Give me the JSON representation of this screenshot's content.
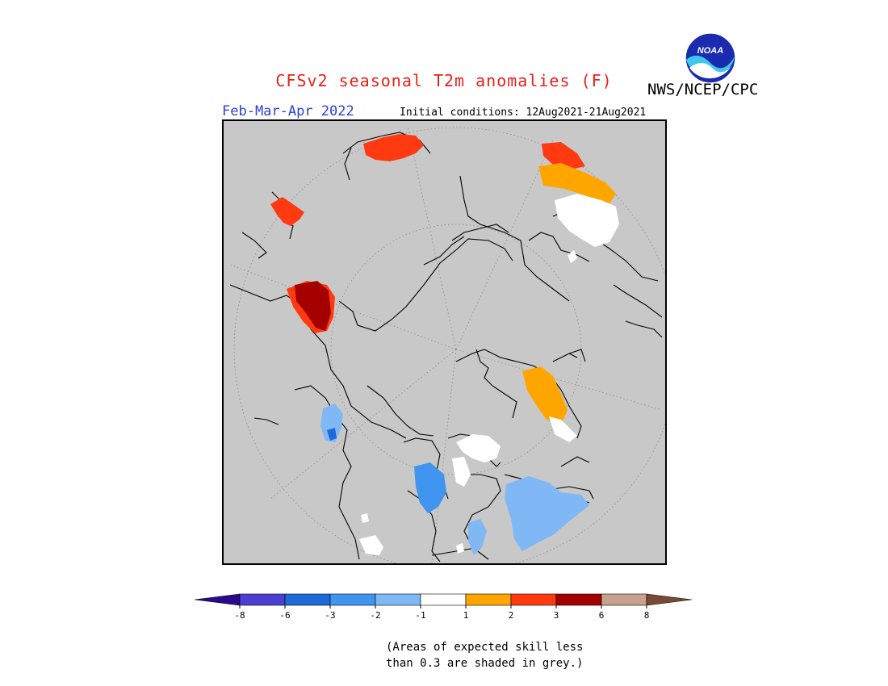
{
  "header": {
    "title": "CFSv2 seasonal T2m anomalies (F)",
    "agency": "NWS/NCEP/CPC",
    "logo_text": "NOAA",
    "season": "Feb-Mar-Apr 2022",
    "initial_conditions": "Initial conditions: 12Aug2021-21Aug2021"
  },
  "colors": {
    "background": "#c8c8c8",
    "land_outline": "#000000",
    "grid": "#808080",
    "title": "#e8201a",
    "season": "#2b3fd8"
  },
  "legend": {
    "ticks": [
      "-8",
      "-6",
      "-3",
      "-2",
      "-1",
      "1",
      "2",
      "3",
      "6",
      "8"
    ],
    "colors": [
      "#2a0a8c",
      "#4a3fd0",
      "#1e6ad8",
      "#3f95f0",
      "#7fb8f5",
      "#ffffff",
      "#ffa500",
      "#ff3a10",
      "#a50000",
      "#c8a090",
      "#7a4a38"
    ]
  },
  "map": {
    "anomaly_patches": [
      {
        "name": "europe-warm-patch",
        "category": "3"
      },
      {
        "name": "scandinavia-warm-patch",
        "category": "3"
      },
      {
        "name": "north-africa-warm-patch",
        "category": "3"
      },
      {
        "name": "north-africa-hot-patch",
        "category": "6"
      },
      {
        "name": "asia-warm-patch",
        "category": "3"
      },
      {
        "name": "asia-moderate-patch",
        "category": "2"
      },
      {
        "name": "asia-neutral-patch",
        "category": "1"
      },
      {
        "name": "greenland-moderate-patch",
        "category": "2"
      },
      {
        "name": "greenland-neutral-patch",
        "category": "1"
      },
      {
        "name": "alaska-cool-patch",
        "category": "-2"
      },
      {
        "name": "alaska-cold-patch",
        "category": "-3"
      },
      {
        "name": "canada-cool-patch",
        "category": "-2"
      },
      {
        "name": "hudson-cool-patch",
        "category": "-2"
      },
      {
        "name": "arctic-neutral-patch",
        "category": "-1"
      },
      {
        "name": "pacific-neutral-patch",
        "category": "-1"
      }
    ]
  },
  "note": {
    "line1": "(Areas of expected skill less",
    "line2": "than 0.3 are shaded in grey.)"
  }
}
